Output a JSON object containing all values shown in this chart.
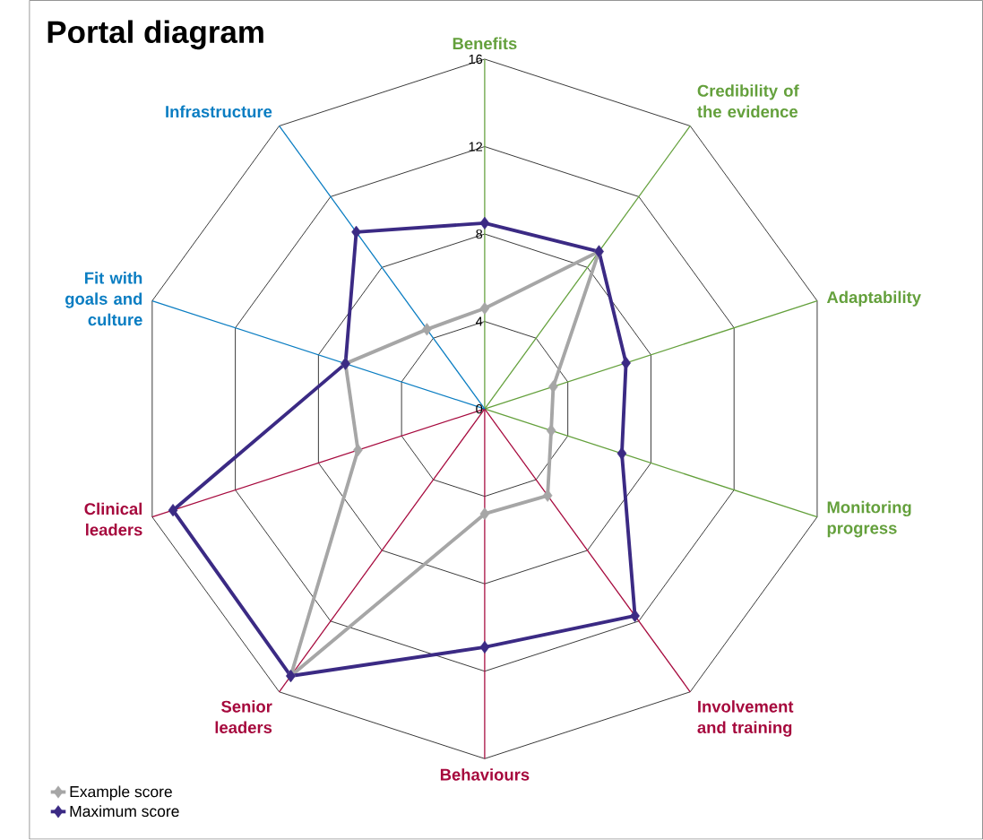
{
  "chart_data": {
    "type": "radar",
    "title": "Portal diagram",
    "categories": [
      "Benefits",
      "Credibility of the evidence",
      "Adaptability",
      "Monitoring progress",
      "Involvement and training",
      "Behaviours",
      "Senior leaders",
      "Clinical leaders",
      "Fit with goals and culture",
      "Infrastructure"
    ],
    "colors": [
      "#64a03c",
      "#64a03c",
      "#64a03c",
      "#64a03c",
      "#a6093d",
      "#a6093d",
      "#a6093d",
      "#a6093d",
      "#0a7dc2",
      "#0a7dc2"
    ],
    "series": [
      {
        "name": "Example score",
        "color": "#a6a6a6",
        "values": [
          4.6,
          8.9,
          3.3,
          3.2,
          4.9,
          4.8,
          15.1,
          6.1,
          6.7,
          4.5
        ]
      },
      {
        "name": "Maximum score",
        "color": "#3b2a84",
        "values": [
          8.5,
          8.9,
          6.8,
          6.6,
          11.7,
          10.9,
          15.1,
          15.0,
          6.7,
          10.0
        ]
      }
    ],
    "ylim": [
      0,
      16
    ],
    "yticks": [
      0,
      4,
      8,
      12,
      16
    ],
    "grid": true,
    "legend": "bottom left",
    "marker": "diamond"
  }
}
